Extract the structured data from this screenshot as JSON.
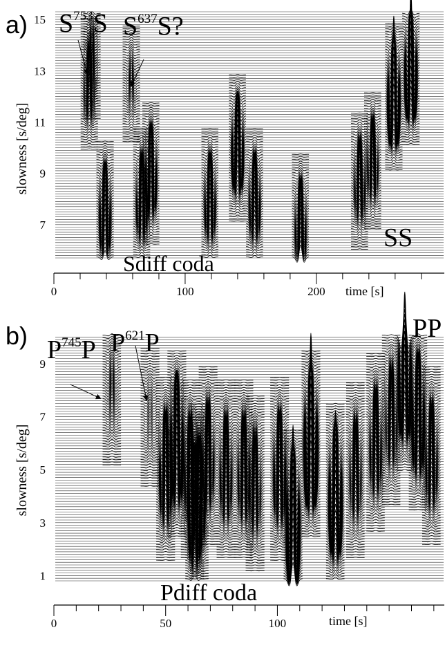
{
  "chart_data": [
    {
      "type": "wiggle",
      "panel_label": "a)",
      "ylabel": "slowness [s/deg]",
      "xlabel": "time [s]",
      "xlim": [
        0,
        298
      ],
      "ylim": [
        5.7,
        15.3
      ],
      "xticks": [
        0,
        100,
        200
      ],
      "xminorticks": [
        20,
        40,
        60,
        80,
        120,
        140,
        160,
        180,
        220,
        240,
        260,
        280
      ],
      "yticks": [
        7,
        9,
        11,
        13,
        15
      ],
      "annotations": [
        {
          "parts": [
            "S",
            "753",
            "S"
          ]
        },
        {
          "parts": [
            "S",
            "637",
            "S?"
          ]
        },
        {
          "parts": [
            "SS"
          ]
        },
        {
          "parts": [
            "Sdiff coda"
          ]
        }
      ],
      "pulses": [
        {
          "time": 29,
          "slowness": 13.5,
          "amplitude": 0.4
        },
        {
          "time": 59,
          "slowness": 12.5,
          "amplitude": 0.3
        },
        {
          "time": 27,
          "slowness": 12.5,
          "amplitude": 0.8
        },
        {
          "time": 39,
          "slowness": 7.5,
          "amplitude": 1.5
        },
        {
          "time": 67,
          "slowness": 8,
          "amplitude": 1.2
        },
        {
          "time": 74,
          "slowness": 9,
          "amplitude": 1.5
        },
        {
          "time": 119,
          "slowness": 8,
          "amplitude": 1.2
        },
        {
          "time": 140,
          "slowness": 10,
          "amplitude": 2
        },
        {
          "time": 153,
          "slowness": 8,
          "amplitude": 1.2
        },
        {
          "time": 188,
          "slowness": 7,
          "amplitude": 1.2
        },
        {
          "time": 233,
          "slowness": 8.7,
          "amplitude": 1
        },
        {
          "time": 243,
          "slowness": 9.5,
          "amplitude": 1
        },
        {
          "time": 259,
          "slowness": 12,
          "amplitude": 3
        },
        {
          "time": 272,
          "slowness": 13,
          "amplitude": 3
        }
      ]
    },
    {
      "type": "wiggle",
      "panel_label": "b)",
      "ylabel": "slowness [s/deg]",
      "xlabel": "time [s]",
      "xlim": [
        0,
        175
      ],
      "ylim": [
        0.8,
        10.1
      ],
      "xticks": [
        0,
        50,
        100
      ],
      "xminorticks": [
        10,
        20,
        30,
        40,
        60,
        70,
        80,
        90,
        110,
        120,
        130,
        140,
        150,
        160,
        170
      ],
      "yticks": [
        1,
        3,
        5,
        7,
        9
      ],
      "annotations": [
        {
          "parts": [
            "P",
            "745",
            "P"
          ]
        },
        {
          "parts": [
            "P",
            "621",
            "P"
          ]
        },
        {
          "parts": [
            "PP"
          ]
        },
        {
          "parts": [
            "Pdiff coda"
          ]
        }
      ],
      "pulses": [
        {
          "time": 26,
          "slowness": 8,
          "amplitude": 0.3
        },
        {
          "time": 43,
          "slowness": 7,
          "amplitude": 0.2
        },
        {
          "time": 50,
          "slowness": 5,
          "amplitude": 1.5
        },
        {
          "time": 55,
          "slowness": 6,
          "amplitude": 2.5
        },
        {
          "time": 61,
          "slowness": 5,
          "amplitude": 1.2
        },
        {
          "time": 63,
          "slowness": 3.5,
          "amplitude": 2
        },
        {
          "time": 65,
          "slowness": 4,
          "amplitude": 1.5
        },
        {
          "time": 69,
          "slowness": 5.5,
          "amplitude": 1.2
        },
        {
          "time": 77,
          "slowness": 5,
          "amplitude": 1.2
        },
        {
          "time": 85,
          "slowness": 5,
          "amplitude": 1.2
        },
        {
          "time": 90,
          "slowness": 4.5,
          "amplitude": 1
        },
        {
          "time": 101,
          "slowness": 5,
          "amplitude": 1.5
        },
        {
          "time": 107,
          "slowness": 3,
          "amplitude": 3.5
        },
        {
          "time": 115,
          "slowness": 6,
          "amplitude": 4
        },
        {
          "time": 126,
          "slowness": 4,
          "amplitude": 3
        },
        {
          "time": 135,
          "slowness": 5,
          "amplitude": 1
        },
        {
          "time": 144,
          "slowness": 6,
          "amplitude": 1.2
        },
        {
          "time": 151,
          "slowness": 7,
          "amplitude": 1
        },
        {
          "time": 157,
          "slowness": 8.5,
          "amplitude": 3
        },
        {
          "time": 163,
          "slowness": 7,
          "amplitude": 2
        },
        {
          "time": 169,
          "slowness": 5.5,
          "amplitude": 1.2
        }
      ]
    }
  ]
}
